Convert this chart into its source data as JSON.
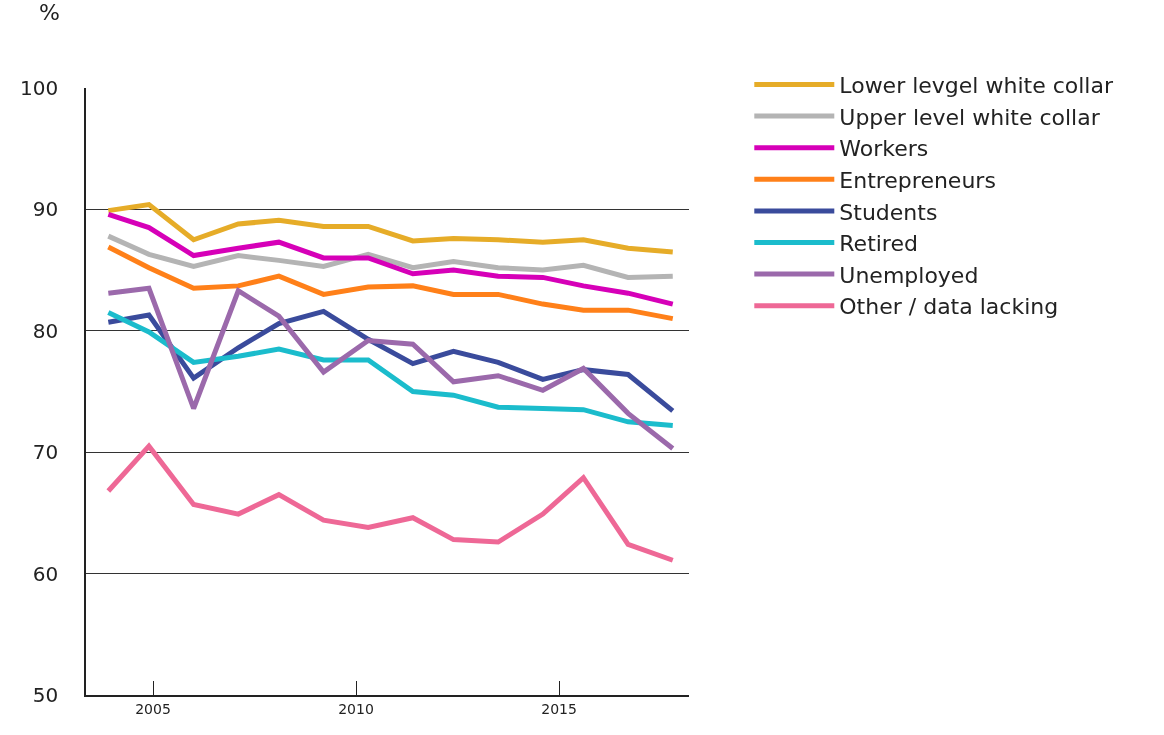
{
  "chart_data": {
    "type": "line",
    "ylabel": "%",
    "x": [
      2003.9,
      2004.9,
      2006.0,
      2007.1,
      2008.1,
      2009.2,
      2010.3,
      2011.4,
      2012.4,
      2013.5,
      2014.6,
      2015.6,
      2016.7,
      2017.8
    ],
    "xlim": [
      2003.35,
      2018.2
    ],
    "xticks": [
      2005,
      2010,
      2015
    ],
    "ylim": [
      50,
      100
    ],
    "yticks": [
      50,
      60,
      70,
      80,
      90,
      100
    ],
    "grid": "y",
    "legend": "top right",
    "marker": "none",
    "line_style": "solid",
    "series": [
      {
        "name": "Lower levgel white collar",
        "color": "#e6ac28",
        "values": [
          89.9,
          90.4,
          87.5,
          88.8,
          89.1,
          88.6,
          88.6,
          87.4,
          87.6,
          87.5,
          87.3,
          87.5,
          86.8,
          86.5
        ]
      },
      {
        "name": "Upper level white collar",
        "color": "#b4b4b4",
        "values": [
          87.8,
          86.3,
          85.3,
          86.2,
          85.8,
          85.3,
          86.3,
          85.2,
          85.7,
          85.2,
          85.0,
          85.4,
          84.4,
          84.5
        ]
      },
      {
        "name": "Workers",
        "color": "#d600b8",
        "values": [
          89.6,
          88.5,
          86.2,
          86.8,
          87.3,
          86.0,
          86.0,
          84.7,
          85.0,
          84.5,
          84.4,
          83.7,
          83.1,
          82.2
        ]
      },
      {
        "name": "Entrepreneurs",
        "color": "#ff8019",
        "values": [
          86.9,
          85.2,
          83.5,
          83.7,
          84.5,
          83.0,
          83.6,
          83.7,
          83.0,
          83.0,
          82.2,
          81.7,
          81.7,
          81.0
        ]
      },
      {
        "name": "Students",
        "color": "#3a4b9c",
        "values": [
          80.7,
          81.3,
          76.1,
          78.6,
          80.6,
          81.6,
          79.3,
          77.3,
          78.3,
          77.4,
          76.0,
          76.8,
          76.4,
          73.4
        ]
      },
      {
        "name": "Retired",
        "color": "#1bbccc",
        "values": [
          81.5,
          79.9,
          77.4,
          77.9,
          78.5,
          77.6,
          77.6,
          75.0,
          74.7,
          73.7,
          73.6,
          73.5,
          72.5,
          72.2
        ]
      },
      {
        "name": "Unemployed",
        "color": "#9b69ab",
        "values": [
          83.1,
          83.5,
          73.6,
          83.3,
          81.2,
          76.6,
          79.2,
          78.9,
          75.8,
          76.3,
          75.1,
          76.9,
          73.2,
          70.3
        ]
      },
      {
        "name": "Other / data lacking",
        "color": "#ee6896",
        "values": [
          66.8,
          70.5,
          65.7,
          64.9,
          66.5,
          64.4,
          63.8,
          64.6,
          62.8,
          62.6,
          64.9,
          67.9,
          62.4,
          61.1
        ]
      }
    ]
  }
}
